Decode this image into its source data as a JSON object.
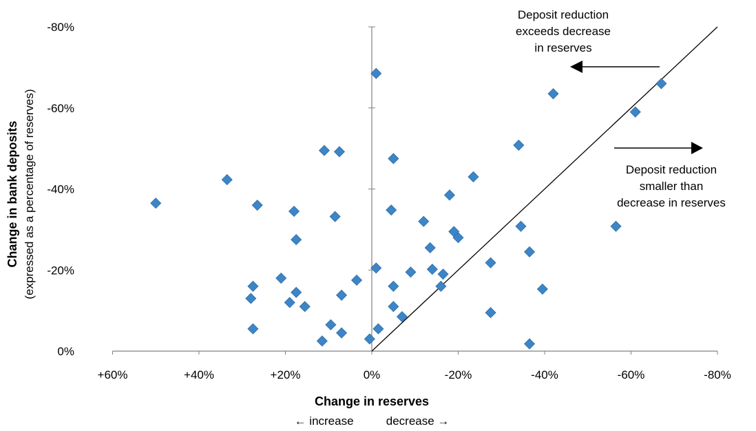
{
  "chart_data": {
    "type": "scatter",
    "xlabel": "Change in reserves",
    "xsublabel": "← increase          decrease →",
    "ylabel": "Change in bank deposits",
    "ylabel_sub": "(expressed as a percentage of reserves)",
    "xlim": [
      60,
      -80
    ],
    "ylim": [
      0,
      -80
    ],
    "xticks": [
      60,
      40,
      20,
      0,
      -20,
      -40,
      -60,
      -80
    ],
    "xtick_labels": [
      "+60%",
      "+40%",
      "+20%",
      "0%",
      "-20%",
      "-40%",
      "-60%",
      "-80%"
    ],
    "yticks": [
      0,
      -20,
      -40,
      -60,
      -80
    ],
    "ytick_labels": [
      "0%",
      "-20%",
      "-40%",
      "-60%",
      "-80%"
    ],
    "grid": false,
    "reference_line": {
      "from": [
        0,
        0
      ],
      "to": [
        -80,
        -80
      ]
    },
    "marker_color": "#3d85c6",
    "annotations": [
      {
        "lines": [
          "Deposit reduction",
          "exceeds decrease",
          "in reserves"
        ],
        "arrow": "left"
      },
      {
        "lines": [
          "Deposit reduction",
          "smaller than",
          "decrease in reserves"
        ],
        "arrow": "right"
      }
    ],
    "points": [
      {
        "x": -1,
        "y": -68.5
      },
      {
        "x": 50,
        "y": -36.5
      },
      {
        "x": 33.5,
        "y": -42.3
      },
      {
        "x": 26.5,
        "y": -36
      },
      {
        "x": 27.5,
        "y": -16
      },
      {
        "x": 28,
        "y": -13
      },
      {
        "x": 27.5,
        "y": -5.5
      },
      {
        "x": 21,
        "y": -18
      },
      {
        "x": 19,
        "y": -12
      },
      {
        "x": 18,
        "y": -34.5
      },
      {
        "x": 17.5,
        "y": -27.5
      },
      {
        "x": 17.5,
        "y": -14.5
      },
      {
        "x": 15.5,
        "y": -11
      },
      {
        "x": 11,
        "y": -49.5
      },
      {
        "x": 7.5,
        "y": -49.2
      },
      {
        "x": 8.5,
        "y": -33.2
      },
      {
        "x": 7,
        "y": -13.8
      },
      {
        "x": 9.5,
        "y": -6.5
      },
      {
        "x": 7,
        "y": -4.5
      },
      {
        "x": 11.5,
        "y": -2.5
      },
      {
        "x": 3.5,
        "y": -17.5
      },
      {
        "x": 0.5,
        "y": -3
      },
      {
        "x": -1,
        "y": -20.5
      },
      {
        "x": -1.5,
        "y": -5.5
      },
      {
        "x": -4.5,
        "y": -34.8
      },
      {
        "x": -5,
        "y": -47.5
      },
      {
        "x": -5,
        "y": -16
      },
      {
        "x": -5,
        "y": -11
      },
      {
        "x": -7,
        "y": -8.5
      },
      {
        "x": -9,
        "y": -19.5
      },
      {
        "x": -12,
        "y": -32
      },
      {
        "x": -13.5,
        "y": -25.5
      },
      {
        "x": -14,
        "y": -20.2
      },
      {
        "x": -16,
        "y": -16
      },
      {
        "x": -16.5,
        "y": -19
      },
      {
        "x": -18,
        "y": -38.5
      },
      {
        "x": -19,
        "y": -29.5
      },
      {
        "x": -20,
        "y": -28
      },
      {
        "x": -23.5,
        "y": -43
      },
      {
        "x": -27.5,
        "y": -21.8
      },
      {
        "x": -27.5,
        "y": -9.5
      },
      {
        "x": -34,
        "y": -50.8
      },
      {
        "x": -34.5,
        "y": -30.8
      },
      {
        "x": -36.5,
        "y": -24.5
      },
      {
        "x": -36.5,
        "y": -1.8
      },
      {
        "x": -39.5,
        "y": -15.3
      },
      {
        "x": -42,
        "y": -63.5
      },
      {
        "x": -56.5,
        "y": -30.8
      },
      {
        "x": -61,
        "y": -59
      },
      {
        "x": -67,
        "y": -66
      }
    ]
  }
}
